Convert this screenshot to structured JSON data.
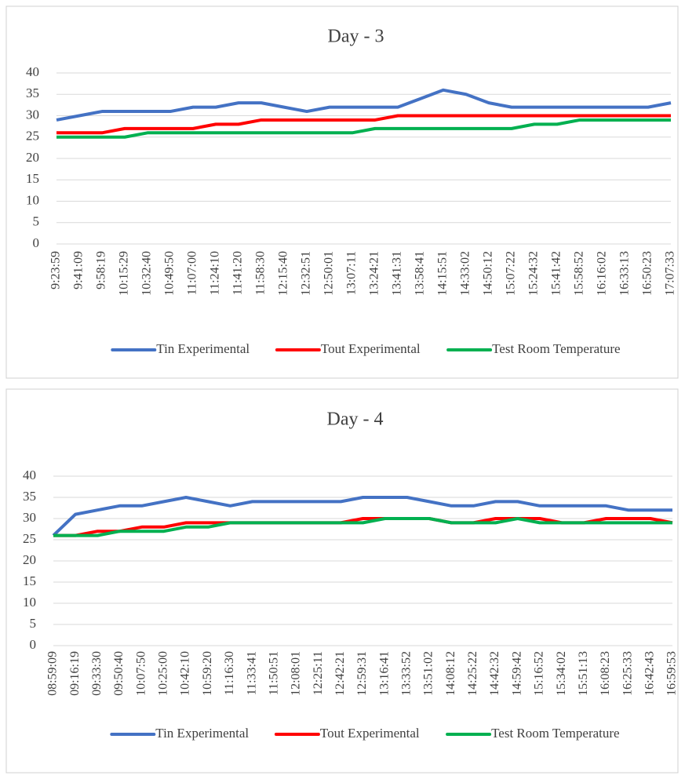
{
  "chart_data": [
    {
      "type": "line",
      "title": "Day - 3",
      "categories": [
        "9:23:59",
        "9:41:09",
        "9:58:19",
        "10:15:29",
        "10:32:40",
        "10:49:50",
        "11:07:00",
        "11:24:10",
        "11:41:20",
        "11:58:30",
        "12:15:40",
        "12:32:51",
        "12:50:01",
        "13:07:11",
        "13:24:21",
        "13:41:31",
        "13:58:41",
        "14:15:51",
        "14:33:02",
        "14:50:12",
        "15:07:22",
        "15:24:32",
        "15:41:42",
        "15:58:52",
        "16:16:02",
        "16:33:13",
        "16:50:23",
        "17:07:33"
      ],
      "series": [
        {
          "name": "Tin Experimental",
          "color": "#4472c4",
          "values": [
            29,
            30,
            31,
            31,
            31,
            31,
            32,
            32,
            33,
            33,
            32,
            31,
            32,
            32,
            32,
            32,
            34,
            36,
            35,
            33,
            32,
            32,
            32,
            32,
            32,
            32,
            32,
            33
          ]
        },
        {
          "name": "Tout Experimental",
          "color": "#ff0000",
          "values": [
            26,
            26,
            26,
            27,
            27,
            27,
            27,
            28,
            28,
            29,
            29,
            29,
            29,
            29,
            29,
            30,
            30,
            30,
            30,
            30,
            30,
            30,
            30,
            30,
            30,
            30,
            30,
            30
          ]
        },
        {
          "name": "Test Room Temperature",
          "color": "#00b050",
          "values": [
            25,
            25,
            25,
            25,
            26,
            26,
            26,
            26,
            26,
            26,
            26,
            26,
            26,
            26,
            27,
            27,
            27,
            27,
            27,
            27,
            27,
            28,
            28,
            29,
            29,
            29,
            29,
            29
          ]
        }
      ],
      "ylim": [
        0,
        40
      ],
      "yticks": [
        0,
        5,
        10,
        15,
        20,
        25,
        30,
        35,
        40
      ],
      "grid": true,
      "legend": "bottom"
    },
    {
      "type": "line",
      "title": "Day - 4",
      "categories": [
        "08:59:09",
        "09:16:19",
        "09:33:30",
        "09:50:40",
        "10:07:50",
        "10:25:00",
        "10:42:10",
        "10:59:20",
        "11:16:30",
        "11:33:41",
        "11:50:51",
        "12:08:01",
        "12:25:11",
        "12:42:21",
        "12:59:31",
        "13:16:41",
        "13:33:52",
        "13:51:02",
        "14:08:12",
        "14:25:22",
        "14:42:32",
        "14:59:42",
        "15:16:52",
        "15:34:02",
        "15:51:13",
        "16:08:23",
        "16:25:33",
        "16:42:43",
        "16:59:53"
      ],
      "series": [
        {
          "name": "Tin Experimental",
          "color": "#4472c4",
          "values": [
            26,
            31,
            32,
            33,
            33,
            34,
            35,
            34,
            33,
            34,
            34,
            34,
            34,
            34,
            35,
            35,
            35,
            34,
            33,
            33,
            34,
            34,
            33,
            33,
            33,
            33,
            32,
            32,
            32
          ]
        },
        {
          "name": "Tout Experimental",
          "color": "#ff0000",
          "values": [
            26,
            26,
            27,
            27,
            28,
            28,
            29,
            29,
            29,
            29,
            29,
            29,
            29,
            29,
            30,
            30,
            30,
            30,
            29,
            29,
            30,
            30,
            30,
            29,
            29,
            30,
            30,
            30,
            29
          ]
        },
        {
          "name": "Test Room Temperature",
          "color": "#00b050",
          "values": [
            26,
            26,
            26,
            27,
            27,
            27,
            28,
            28,
            29,
            29,
            29,
            29,
            29,
            29,
            29,
            30,
            30,
            30,
            29,
            29,
            29,
            30,
            29,
            29,
            29,
            29,
            29,
            29,
            29
          ]
        }
      ],
      "ylim": [
        0,
        40
      ],
      "yticks": [
        0,
        5,
        10,
        15,
        20,
        25,
        30,
        35,
        40
      ],
      "grid": true,
      "legend": "bottom"
    }
  ]
}
